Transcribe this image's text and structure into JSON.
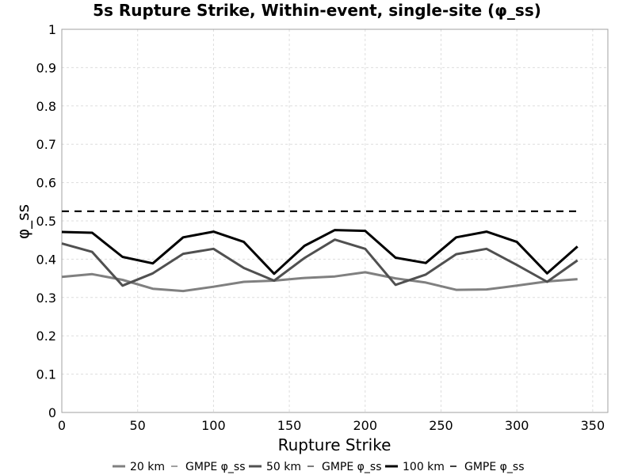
{
  "chart_data": {
    "type": "line",
    "title": "5s Rupture Strike, Within-event, single-site (φ_ss)",
    "xlabel": "Rupture Strike",
    "ylabel": "φ_ss",
    "xlim": [
      0,
      360
    ],
    "ylim": [
      0,
      1
    ],
    "xticks": [
      0,
      50,
      100,
      150,
      200,
      250,
      300,
      350
    ],
    "yticks": [
      0,
      0.1,
      0.2,
      0.3,
      0.4,
      0.5,
      0.6,
      0.7,
      0.8,
      0.9,
      1
    ],
    "grid": true,
    "legend_position": "bottom",
    "series": [
      {
        "name": "20 km",
        "style": "solid",
        "color": "#808080",
        "x": [
          0,
          20,
          40,
          60,
          80,
          100,
          120,
          140,
          160,
          180,
          200,
          220,
          240,
          260,
          280,
          300,
          320,
          340
        ],
        "values": [
          0.354,
          0.361,
          0.346,
          0.323,
          0.317,
          0.328,
          0.341,
          0.344,
          0.351,
          0.355,
          0.366,
          0.35,
          0.339,
          0.32,
          0.321,
          0.331,
          0.342,
          0.348
        ]
      },
      {
        "name": "GMPE φ_ss",
        "style": "dashed",
        "color": "#808080",
        "x": [
          0,
          340
        ],
        "values": [
          0.525,
          0.525
        ]
      },
      {
        "name": "50 km",
        "style": "solid",
        "color": "#505050",
        "x": [
          0,
          20,
          40,
          60,
          80,
          100,
          120,
          140,
          160,
          180,
          200,
          220,
          240,
          260,
          280,
          300,
          320,
          340
        ],
        "values": [
          0.441,
          0.419,
          0.331,
          0.363,
          0.414,
          0.427,
          0.377,
          0.344,
          0.403,
          0.451,
          0.427,
          0.333,
          0.36,
          0.413,
          0.427,
          0.385,
          0.341,
          0.397
        ]
      },
      {
        "name": "GMPE φ_ss",
        "style": "dashed",
        "color": "#505050",
        "x": [
          0,
          340
        ],
        "values": [
          0.525,
          0.525
        ]
      },
      {
        "name": "100 km",
        "style": "solid",
        "color": "#000000",
        "x": [
          0,
          20,
          40,
          60,
          80,
          100,
          120,
          140,
          160,
          180,
          200,
          220,
          240,
          260,
          280,
          300,
          320,
          340
        ],
        "values": [
          0.471,
          0.469,
          0.406,
          0.389,
          0.457,
          0.472,
          0.445,
          0.362,
          0.435,
          0.476,
          0.474,
          0.404,
          0.39,
          0.457,
          0.472,
          0.445,
          0.363,
          0.433
        ]
      },
      {
        "name": "GMPE φ_ss",
        "style": "dashed",
        "color": "#000000",
        "x": [
          0,
          340
        ],
        "values": [
          0.525,
          0.525
        ]
      }
    ]
  }
}
